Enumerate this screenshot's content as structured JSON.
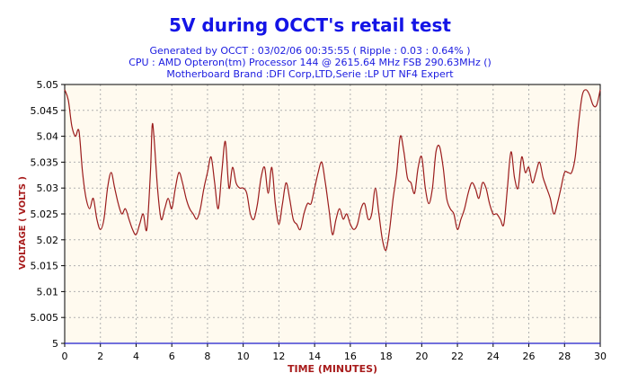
{
  "header": {
    "title": "5V during OCCT's retail test",
    "line1": "Generated by OCCT : 03/02/06 00:35:55 ( Ripple : 0.03 : 0.64% )",
    "line2": "CPU : AMD Opteron(tm) Processor 144    @ 2615.64 MHz FSB 290.63MHz ()",
    "line3": "Motherboard Brand :DFI Corp,LTD,Serie :LP UT NF4 Expert"
  },
  "chart_data": {
    "type": "line",
    "title": "5V during OCCT's retail test",
    "xlabel": "TIME (MINUTES)",
    "ylabel": "VOLTAGE ( VOLTS )",
    "xlim": [
      0,
      30
    ],
    "ylim": [
      5.0,
      5.05
    ],
    "xticks": [
      0,
      2,
      4,
      6,
      8,
      10,
      12,
      14,
      16,
      18,
      20,
      22,
      24,
      26,
      28,
      30
    ],
    "yticks": [
      "5",
      "5.005",
      "5.01",
      "5.015",
      "5.02",
      "5.025",
      "5.03",
      "5.035",
      "5.04",
      "5.045",
      "5.05"
    ],
    "grid": true,
    "colors": {
      "plot_bg": "#fffaef",
      "series": "#9b1c1c",
      "reference": "#1c1ccc",
      "axis_label": "#a81c1c",
      "grid": "#b0b0b0"
    },
    "series": [
      {
        "values": [
          [
            0.0,
            5.049
          ],
          [
            0.2,
            5.047
          ],
          [
            0.4,
            5.042
          ],
          [
            0.6,
            5.04
          ],
          [
            0.8,
            5.041
          ],
          [
            1.0,
            5.033
          ],
          [
            1.2,
            5.028
          ],
          [
            1.4,
            5.026
          ],
          [
            1.6,
            5.028
          ],
          [
            1.8,
            5.024
          ],
          [
            2.0,
            5.022
          ],
          [
            2.2,
            5.024
          ],
          [
            2.4,
            5.03
          ],
          [
            2.6,
            5.033
          ],
          [
            2.8,
            5.03
          ],
          [
            3.0,
            5.027
          ],
          [
            3.2,
            5.025
          ],
          [
            3.4,
            5.026
          ],
          [
            3.6,
            5.024
          ],
          [
            3.8,
            5.022
          ],
          [
            4.0,
            5.021
          ],
          [
            4.2,
            5.023
          ],
          [
            4.4,
            5.025
          ],
          [
            4.6,
            5.022
          ],
          [
            4.8,
            5.033
          ],
          [
            4.9,
            5.042
          ],
          [
            5.0,
            5.04
          ],
          [
            5.2,
            5.03
          ],
          [
            5.4,
            5.024
          ],
          [
            5.6,
            5.026
          ],
          [
            5.8,
            5.028
          ],
          [
            6.0,
            5.026
          ],
          [
            6.2,
            5.03
          ],
          [
            6.4,
            5.033
          ],
          [
            6.6,
            5.031
          ],
          [
            6.8,
            5.028
          ],
          [
            7.0,
            5.026
          ],
          [
            7.2,
            5.025
          ],
          [
            7.4,
            5.024
          ],
          [
            7.6,
            5.026
          ],
          [
            7.8,
            5.03
          ],
          [
            8.0,
            5.033
          ],
          [
            8.2,
            5.036
          ],
          [
            8.4,
            5.031
          ],
          [
            8.6,
            5.026
          ],
          [
            8.8,
            5.033
          ],
          [
            9.0,
            5.039
          ],
          [
            9.2,
            5.03
          ],
          [
            9.4,
            5.034
          ],
          [
            9.6,
            5.031
          ],
          [
            9.8,
            5.03
          ],
          [
            10.0,
            5.03
          ],
          [
            10.2,
            5.029
          ],
          [
            10.4,
            5.025
          ],
          [
            10.6,
            5.024
          ],
          [
            10.8,
            5.027
          ],
          [
            11.0,
            5.032
          ],
          [
            11.2,
            5.034
          ],
          [
            11.4,
            5.029
          ],
          [
            11.6,
            5.034
          ],
          [
            11.8,
            5.027
          ],
          [
            12.0,
            5.023
          ],
          [
            12.2,
            5.027
          ],
          [
            12.4,
            5.031
          ],
          [
            12.6,
            5.028
          ],
          [
            12.8,
            5.024
          ],
          [
            13.0,
            5.023
          ],
          [
            13.2,
            5.022
          ],
          [
            13.4,
            5.025
          ],
          [
            13.6,
            5.027
          ],
          [
            13.8,
            5.027
          ],
          [
            14.0,
            5.03
          ],
          [
            14.2,
            5.033
          ],
          [
            14.4,
            5.035
          ],
          [
            14.6,
            5.031
          ],
          [
            14.8,
            5.026
          ],
          [
            15.0,
            5.021
          ],
          [
            15.2,
            5.024
          ],
          [
            15.4,
            5.026
          ],
          [
            15.6,
            5.024
          ],
          [
            15.8,
            5.025
          ],
          [
            16.0,
            5.023
          ],
          [
            16.2,
            5.022
          ],
          [
            16.4,
            5.023
          ],
          [
            16.6,
            5.026
          ],
          [
            16.8,
            5.027
          ],
          [
            17.0,
            5.024
          ],
          [
            17.2,
            5.025
          ],
          [
            17.4,
            5.03
          ],
          [
            17.6,
            5.025
          ],
          [
            17.8,
            5.02
          ],
          [
            18.0,
            5.018
          ],
          [
            18.2,
            5.022
          ],
          [
            18.4,
            5.028
          ],
          [
            18.6,
            5.033
          ],
          [
            18.8,
            5.04
          ],
          [
            19.0,
            5.037
          ],
          [
            19.2,
            5.032
          ],
          [
            19.4,
            5.031
          ],
          [
            19.6,
            5.029
          ],
          [
            19.8,
            5.034
          ],
          [
            20.0,
            5.036
          ],
          [
            20.2,
            5.03
          ],
          [
            20.4,
            5.027
          ],
          [
            20.6,
            5.03
          ],
          [
            20.8,
            5.037
          ],
          [
            21.0,
            5.038
          ],
          [
            21.2,
            5.034
          ],
          [
            21.4,
            5.028
          ],
          [
            21.6,
            5.026
          ],
          [
            21.8,
            5.025
          ],
          [
            22.0,
            5.022
          ],
          [
            22.2,
            5.024
          ],
          [
            22.4,
            5.026
          ],
          [
            22.6,
            5.029
          ],
          [
            22.8,
            5.031
          ],
          [
            23.0,
            5.03
          ],
          [
            23.2,
            5.028
          ],
          [
            23.4,
            5.031
          ],
          [
            23.6,
            5.03
          ],
          [
            23.8,
            5.027
          ],
          [
            24.0,
            5.025
          ],
          [
            24.2,
            5.025
          ],
          [
            24.4,
            5.024
          ],
          [
            24.6,
            5.023
          ],
          [
            24.8,
            5.03
          ],
          [
            25.0,
            5.037
          ],
          [
            25.2,
            5.032
          ],
          [
            25.4,
            5.03
          ],
          [
            25.6,
            5.036
          ],
          [
            25.8,
            5.033
          ],
          [
            26.0,
            5.034
          ],
          [
            26.2,
            5.031
          ],
          [
            26.4,
            5.033
          ],
          [
            26.6,
            5.035
          ],
          [
            26.8,
            5.032
          ],
          [
            27.0,
            5.03
          ],
          [
            27.2,
            5.028
          ],
          [
            27.4,
            5.025
          ],
          [
            27.6,
            5.027
          ],
          [
            27.8,
            5.03
          ],
          [
            28.0,
            5.033
          ],
          [
            28.2,
            5.033
          ],
          [
            28.4,
            5.033
          ],
          [
            28.6,
            5.036
          ],
          [
            28.8,
            5.043
          ],
          [
            29.0,
            5.048
          ],
          [
            29.2,
            5.049
          ],
          [
            29.4,
            5.048
          ],
          [
            29.6,
            5.046
          ],
          [
            29.8,
            5.046
          ],
          [
            30.0,
            5.049
          ]
        ]
      },
      {
        "values": [
          [
            0,
            5.0
          ],
          [
            30,
            5.0
          ]
        ]
      }
    ]
  }
}
